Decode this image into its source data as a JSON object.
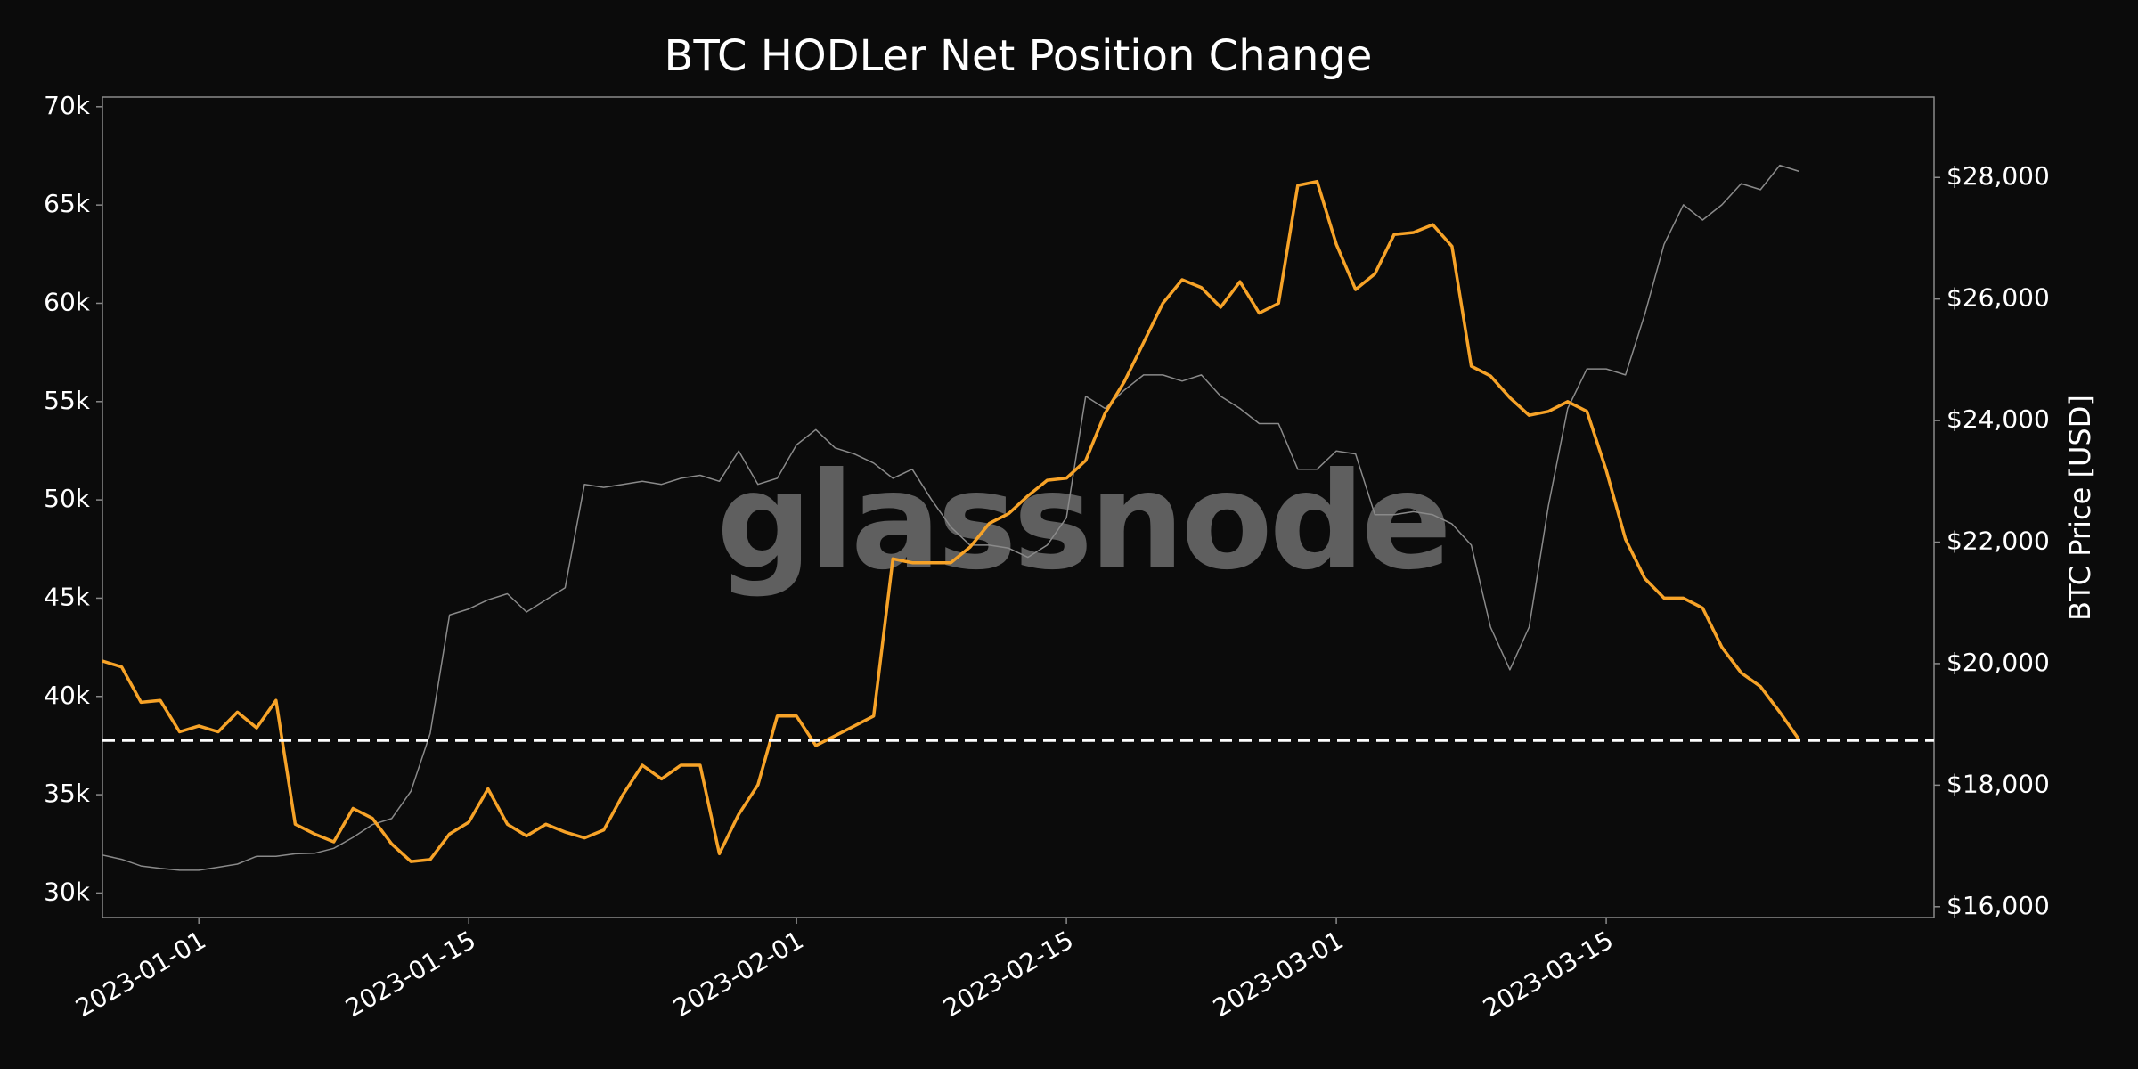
{
  "chart_data": {
    "type": "line",
    "title": "BTC HODLer Net Position Change",
    "y2label": "BTC Price [USD]",
    "watermark": "glassnode",
    "background": "#0b0b0b",
    "x": [
      "2022-12-27",
      "2022-12-28",
      "2022-12-29",
      "2022-12-30",
      "2022-12-31",
      "2023-01-01",
      "2023-01-02",
      "2023-01-03",
      "2023-01-04",
      "2023-01-05",
      "2023-01-06",
      "2023-01-07",
      "2023-01-08",
      "2023-01-09",
      "2023-01-10",
      "2023-01-11",
      "2023-01-12",
      "2023-01-13",
      "2023-01-14",
      "2023-01-15",
      "2023-01-16",
      "2023-01-17",
      "2023-01-18",
      "2023-01-19",
      "2023-01-20",
      "2023-01-21",
      "2023-01-22",
      "2023-01-23",
      "2023-01-24",
      "2023-01-25",
      "2023-01-26",
      "2023-01-27",
      "2023-01-28",
      "2023-01-29",
      "2023-01-30",
      "2023-01-31",
      "2023-02-01",
      "2023-02-02",
      "2023-02-03",
      "2023-02-04",
      "2023-02-05",
      "2023-02-06",
      "2023-02-07",
      "2023-02-08",
      "2023-02-09",
      "2023-02-10",
      "2023-02-11",
      "2023-02-12",
      "2023-02-13",
      "2023-02-14",
      "2023-02-15",
      "2023-02-16",
      "2023-02-17",
      "2023-02-18",
      "2023-02-19",
      "2023-02-20",
      "2023-02-21",
      "2023-02-22",
      "2023-02-23",
      "2023-02-24",
      "2023-02-25",
      "2023-02-26",
      "2023-02-27",
      "2023-02-28",
      "2023-03-01",
      "2023-03-02",
      "2023-03-03",
      "2023-03-04",
      "2023-03-05",
      "2023-03-06",
      "2023-03-07",
      "2023-03-08",
      "2023-03-09",
      "2023-03-10",
      "2023-03-11",
      "2023-03-12",
      "2023-03-13",
      "2023-03-14",
      "2023-03-15",
      "2023-03-16",
      "2023-03-17",
      "2023-03-18",
      "2023-03-19",
      "2023-03-20",
      "2023-03-21",
      "2023-03-22",
      "2023-03-23",
      "2023-03-24",
      "2023-03-25"
    ],
    "series": [
      {
        "color": "#f7a328",
        "values": [
          41800,
          41500,
          39700,
          39800,
          38200,
          38500,
          38200,
          39200,
          38400,
          39800,
          33500,
          33000,
          32600,
          34300,
          33800,
          32500,
          31600,
          31700,
          33000,
          33600,
          35300,
          33500,
          32900,
          33500,
          33100,
          32800,
          33200,
          35000,
          36500,
          35800,
          36500,
          36500,
          32000,
          34000,
          35500,
          39000,
          39000,
          37500,
          38000,
          38500,
          39000,
          47000,
          46800,
          46800,
          46800,
          47600,
          48800,
          49300,
          50200,
          51000,
          51100,
          52000,
          54400,
          56000,
          58000,
          60000,
          61200,
          60800,
          59800,
          61100,
          59500,
          60000,
          66000,
          66200,
          63000,
          60700,
          61500,
          63500,
          63600,
          64000,
          62900,
          56800,
          56300,
          55200,
          54300,
          54500,
          55000,
          54500,
          51500,
          48000,
          46000,
          45000,
          45000,
          44500,
          42500,
          41200,
          40500,
          39200,
          37800
        ]
      },
      {
        "color": "#8a8a8a",
        "axis": "y2",
        "values": [
          16850,
          16780,
          16670,
          16630,
          16600,
          16600,
          16650,
          16700,
          16830,
          16830,
          16870,
          16880,
          16960,
          17140,
          17350,
          17450,
          17900,
          18850,
          20800,
          20900,
          21050,
          21150,
          20850,
          21050,
          21250,
          22950,
          22900,
          22950,
          23000,
          22950,
          23050,
          23100,
          23000,
          23500,
          22950,
          23050,
          23600,
          23850,
          23550,
          23450,
          23300,
          23050,
          23200,
          22700,
          22250,
          21950,
          21950,
          21900,
          21750,
          21950,
          22400,
          24400,
          24200,
          24500,
          24750,
          24750,
          24650,
          24750,
          24400,
          24200,
          23950,
          23950,
          23200,
          23200,
          23500,
          23450,
          22450,
          22450,
          22500,
          22450,
          22300,
          21950,
          20600,
          19900,
          20600,
          22600,
          24200,
          24850,
          24850,
          24750,
          25750,
          26900,
          27550,
          27300,
          27550,
          27900,
          27800,
          28200,
          28100
        ]
      }
    ],
    "reference_line": {
      "value": 37760,
      "color": "#ffffff",
      "dashed": true
    },
    "xlim": [
      "2022-12-27",
      "2023-04-01"
    ],
    "xticks": [
      "2023-01-01",
      "2023-01-15",
      "2023-02-01",
      "2023-02-15",
      "2023-03-01",
      "2023-03-15"
    ],
    "ylim": [
      28750,
      70490
    ],
    "yticks": [
      {
        "value": 30000,
        "label": "30k"
      },
      {
        "value": 35000,
        "label": "35k"
      },
      {
        "value": 40000,
        "label": "40k"
      },
      {
        "value": 45000,
        "label": "45k"
      },
      {
        "value": 50000,
        "label": "50k"
      },
      {
        "value": 55000,
        "label": "55k"
      },
      {
        "value": 60000,
        "label": "60k"
      },
      {
        "value": 65000,
        "label": "65k"
      },
      {
        "value": 70000,
        "label": "70k"
      }
    ],
    "y2lim": [
      15821,
      29323
    ],
    "y2ticks": [
      {
        "value": 16000,
        "label": "$16,000"
      },
      {
        "value": 18000,
        "label": "$18,000"
      },
      {
        "value": 20000,
        "label": "$20,000"
      },
      {
        "value": 22000,
        "label": "$22,000"
      },
      {
        "value": 24000,
        "label": "$24,000"
      },
      {
        "value": 26000,
        "label": "$26,000"
      },
      {
        "value": 28000,
        "label": "$28,000"
      }
    ],
    "grid": false
  }
}
